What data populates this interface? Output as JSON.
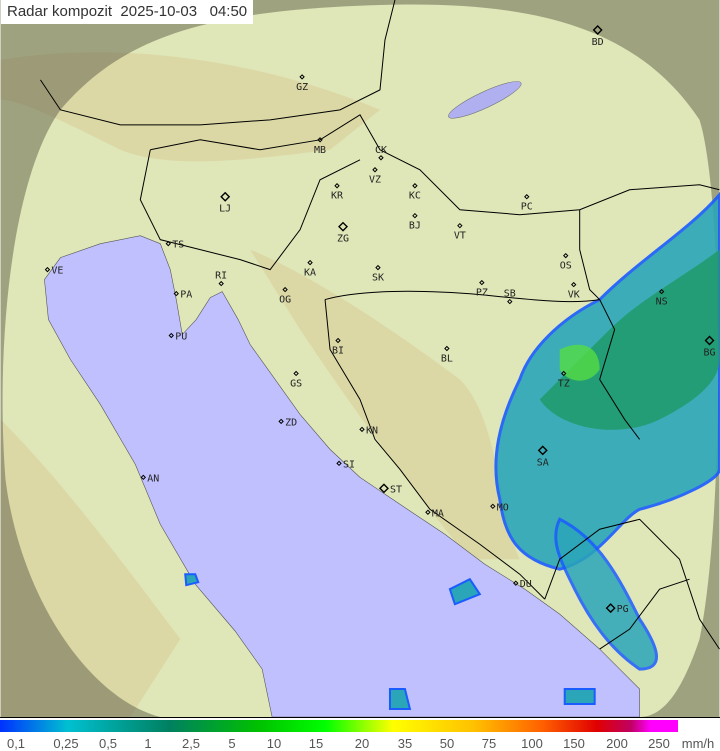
{
  "title": "Radar kompozit  2025-10-03   04:50",
  "colors": {
    "land": "#dfe6b8",
    "sea": "#c0c0ff",
    "outside_coverage": "#8a8a70",
    "rain_light": "#2aa6b8",
    "rain_medium": "#1e9a6a",
    "rain_heavy": "#55dd44",
    "rain_edge": "#1a5cff",
    "border": "#000000"
  },
  "cities": [
    "GZ",
    "BD",
    "MB",
    "CK",
    "VZ",
    "KR",
    "KC",
    "LJ",
    "ZG",
    "BJ",
    "VT",
    "PC",
    "TS",
    "KA",
    "SK",
    "OS",
    "VE",
    "RI",
    "PA",
    "OG",
    "PZ",
    "SB",
    "VK",
    "NS",
    "PU",
    "BI",
    "BL",
    "TZ",
    "BG",
    "GS",
    "ZD",
    "KN",
    "SI",
    "SA",
    "AN",
    "ST",
    "MA",
    "MO",
    "DU",
    "PG"
  ],
  "legend": {
    "labels": [
      "0,1",
      "0,25",
      "0,5",
      "1",
      "2,5",
      "5",
      "10",
      "15",
      "20",
      "35",
      "50",
      "75",
      "100",
      "150",
      "200",
      "250"
    ],
    "unit": "mm/h"
  }
}
